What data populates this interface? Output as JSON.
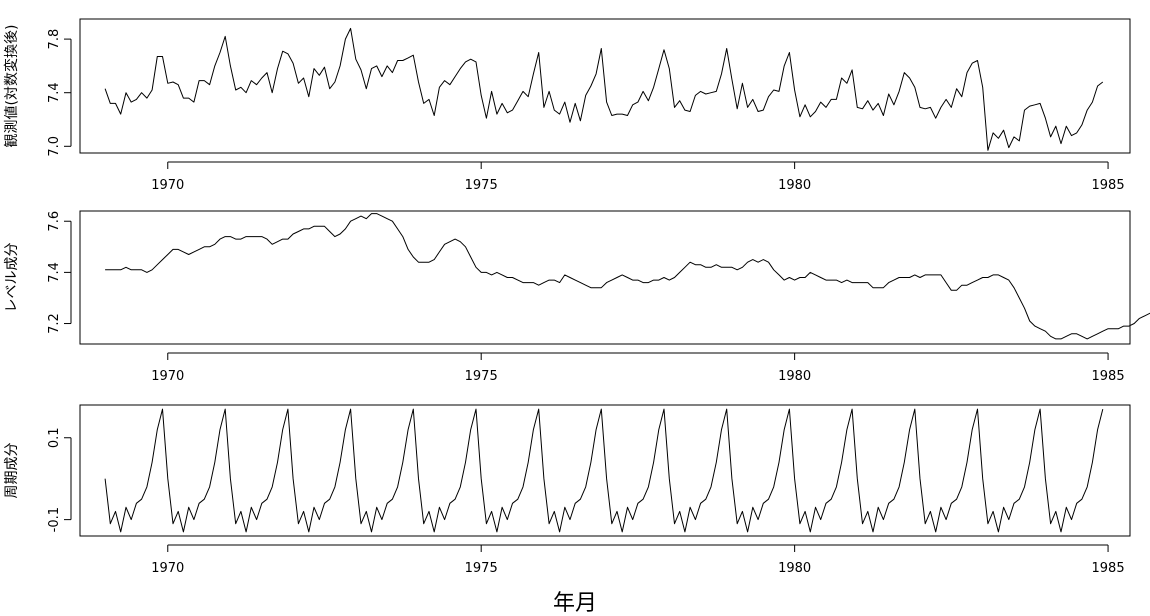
{
  "chart_data": {
    "type": "line",
    "xlabel": "年月",
    "x_start": 1969.0,
    "x_step": 0.0833333,
    "xlim": [
      1968.6,
      1985.35
    ],
    "xticks": [
      1970,
      1975,
      1980,
      1985
    ],
    "xtick_labels": [
      "1970",
      "1975",
      "1980",
      "1985"
    ],
    "grid": false,
    "legend": "none",
    "panels": [
      {
        "ylabel": "観測値(対数変換後)",
        "ylim": [
          6.95,
          7.95
        ],
        "yticks": [
          7.0,
          7.4,
          7.8
        ],
        "ytick_labels": [
          "7.0",
          "7.4",
          "7.8"
        ],
        "values": [
          7.43,
          7.32,
          7.32,
          7.24,
          7.4,
          7.33,
          7.35,
          7.4,
          7.36,
          7.42,
          7.67,
          7.67,
          7.47,
          7.48,
          7.46,
          7.36,
          7.36,
          7.33,
          7.49,
          7.49,
          7.46,
          7.6,
          7.7,
          7.82,
          7.6,
          7.42,
          7.44,
          7.4,
          7.49,
          7.46,
          7.51,
          7.55,
          7.4,
          7.58,
          7.71,
          7.69,
          7.62,
          7.47,
          7.51,
          7.37,
          7.58,
          7.53,
          7.59,
          7.43,
          7.48,
          7.6,
          7.8,
          7.88,
          7.65,
          7.57,
          7.43,
          7.58,
          7.6,
          7.52,
          7.6,
          7.55,
          7.64,
          7.64,
          7.66,
          7.68,
          7.48,
          7.32,
          7.35,
          7.23,
          7.44,
          7.49,
          7.46,
          7.52,
          7.58,
          7.63,
          7.65,
          7.63,
          7.38,
          7.21,
          7.41,
          7.24,
          7.32,
          7.25,
          7.27,
          7.34,
          7.41,
          7.37,
          7.54,
          7.7,
          7.29,
          7.41,
          7.27,
          7.24,
          7.33,
          7.18,
          7.32,
          7.19,
          7.38,
          7.45,
          7.54,
          7.73,
          7.33,
          7.23,
          7.24,
          7.24,
          7.23,
          7.31,
          7.33,
          7.41,
          7.34,
          7.44,
          7.58,
          7.72,
          7.58,
          7.29,
          7.34,
          7.27,
          7.26,
          7.38,
          7.41,
          7.39,
          7.4,
          7.41,
          7.54,
          7.73,
          7.5,
          7.28,
          7.47,
          7.29,
          7.35,
          7.26,
          7.27,
          7.37,
          7.42,
          7.41,
          7.6,
          7.7,
          7.42,
          7.22,
          7.31,
          7.22,
          7.26,
          7.33,
          7.29,
          7.35,
          7.35,
          7.51,
          7.47,
          7.57,
          7.29,
          7.28,
          7.34,
          7.27,
          7.32,
          7.23,
          7.39,
          7.31,
          7.41,
          7.55,
          7.51,
          7.44,
          7.29,
          7.28,
          7.29,
          7.21,
          7.29,
          7.35,
          7.29,
          7.43,
          7.37,
          7.55,
          7.62,
          7.64,
          7.44,
          6.97,
          7.1,
          7.06,
          7.12,
          6.99,
          7.07,
          7.04,
          7.27,
          7.3,
          7.31,
          7.32,
          7.21,
          7.07,
          7.15,
          7.02,
          7.15,
          7.08,
          7.1,
          7.16,
          7.27,
          7.33,
          7.45,
          7.48
        ]
      },
      {
        "ylabel": "レベル成分",
        "ylim": [
          7.12,
          7.64
        ],
        "yticks": [
          7.2,
          7.4,
          7.6
        ],
        "ytick_labels": [
          "7.2",
          "7.4",
          "7.6"
        ],
        "values": [
          7.41,
          7.41,
          7.41,
          7.41,
          7.42,
          7.41,
          7.41,
          7.41,
          7.4,
          7.41,
          7.43,
          7.45,
          7.47,
          7.49,
          7.49,
          7.48,
          7.47,
          7.48,
          7.49,
          7.5,
          7.5,
          7.51,
          7.53,
          7.54,
          7.54,
          7.53,
          7.53,
          7.54,
          7.54,
          7.54,
          7.54,
          7.53,
          7.51,
          7.52,
          7.53,
          7.53,
          7.55,
          7.56,
          7.57,
          7.57,
          7.58,
          7.58,
          7.58,
          7.56,
          7.54,
          7.55,
          7.57,
          7.6,
          7.61,
          7.62,
          7.61,
          7.63,
          7.63,
          7.62,
          7.61,
          7.6,
          7.57,
          7.54,
          7.49,
          7.46,
          7.44,
          7.44,
          7.44,
          7.45,
          7.48,
          7.51,
          7.52,
          7.53,
          7.52,
          7.5,
          7.46,
          7.42,
          7.4,
          7.4,
          7.39,
          7.4,
          7.39,
          7.38,
          7.38,
          7.37,
          7.36,
          7.36,
          7.36,
          7.35,
          7.36,
          7.37,
          7.37,
          7.36,
          7.39,
          7.38,
          7.37,
          7.36,
          7.35,
          7.34,
          7.34,
          7.34,
          7.36,
          7.37,
          7.38,
          7.39,
          7.38,
          7.37,
          7.37,
          7.36,
          7.36,
          7.37,
          7.37,
          7.38,
          7.37,
          7.38,
          7.4,
          7.42,
          7.44,
          7.43,
          7.43,
          7.42,
          7.42,
          7.43,
          7.42,
          7.42,
          7.42,
          7.41,
          7.42,
          7.44,
          7.45,
          7.44,
          7.45,
          7.44,
          7.41,
          7.39,
          7.37,
          7.38,
          7.37,
          7.38,
          7.38,
          7.4,
          7.39,
          7.38,
          7.37,
          7.37,
          7.37,
          7.36,
          7.37,
          7.36,
          7.36,
          7.36,
          7.36,
          7.34,
          7.34,
          7.34,
          7.36,
          7.37,
          7.38,
          7.38,
          7.38,
          7.39,
          7.38,
          7.39,
          7.39,
          7.39,
          7.39,
          7.36,
          7.33,
          7.33,
          7.35,
          7.35,
          7.36,
          7.37,
          7.38,
          7.38,
          7.39,
          7.39,
          7.38,
          7.37,
          7.34,
          7.3,
          7.26,
          7.21,
          7.19,
          7.18,
          7.17,
          7.15,
          7.14,
          7.14,
          7.15,
          7.16,
          7.16,
          7.15,
          7.14,
          7.15,
          7.16,
          7.17,
          7.18,
          7.18,
          7.18,
          7.19,
          7.19,
          7.2,
          7.22,
          7.23,
          7.24,
          7.24,
          7.24,
          7.24
        ]
      },
      {
        "ylabel": "周期成分",
        "ylim": [
          -0.14,
          0.18
        ],
        "yticks": [
          -0.1,
          0.1
        ],
        "ytick_labels": [
          "-0.1",
          "0.1"
        ],
        "period_values": [
          0.0,
          -0.11,
          -0.08,
          -0.13,
          -0.07,
          -0.1,
          -0.06,
          -0.05,
          -0.02,
          0.04,
          0.12,
          0.17
        ],
        "values": []
      }
    ]
  }
}
